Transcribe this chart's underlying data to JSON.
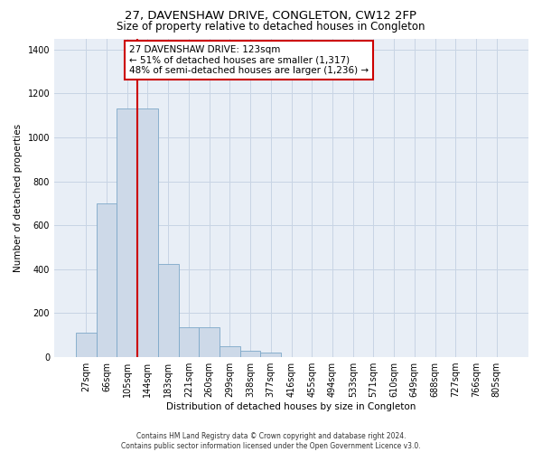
{
  "title": "27, DAVENSHAW DRIVE, CONGLETON, CW12 2FP",
  "subtitle": "Size of property relative to detached houses in Congleton",
  "xlabel": "Distribution of detached houses by size in Congleton",
  "ylabel": "Number of detached properties",
  "footer_line1": "Contains HM Land Registry data © Crown copyright and database right 2024.",
  "footer_line2": "Contains public sector information licensed under the Open Government Licence v3.0.",
  "categories": [
    "27sqm",
    "66sqm",
    "105sqm",
    "144sqm",
    "183sqm",
    "221sqm",
    "260sqm",
    "299sqm",
    "338sqm",
    "377sqm",
    "416sqm",
    "455sqm",
    "494sqm",
    "533sqm",
    "571sqm",
    "610sqm",
    "649sqm",
    "688sqm",
    "727sqm",
    "766sqm",
    "805sqm"
  ],
  "values": [
    110,
    700,
    1130,
    1130,
    425,
    135,
    135,
    50,
    30,
    20,
    0,
    0,
    0,
    0,
    0,
    0,
    0,
    0,
    0,
    0,
    0
  ],
  "bar_color": "#cdd9e8",
  "bar_edgecolor": "#7da8c8",
  "ref_line_color": "#cc0000",
  "ref_line_index": 2.5,
  "annotation_text_line1": "27 DAVENSHAW DRIVE: 123sqm",
  "annotation_text_line2": "← 51% of detached houses are smaller (1,317)",
  "annotation_text_line3": "48% of semi-detached houses are larger (1,236) →",
  "annotation_box_color": "#cc0000",
  "ylim": [
    0,
    1450
  ],
  "yticks": [
    0,
    200,
    400,
    600,
    800,
    1000,
    1200,
    1400
  ],
  "grid_color": "#c8d4e4",
  "bg_color": "#e8eef6",
  "title_fontsize": 9.5,
  "subtitle_fontsize": 8.5,
  "tick_fontsize": 7,
  "ylabel_fontsize": 7.5,
  "xlabel_fontsize": 7.5,
  "annotation_fontsize": 7.5,
  "footer_fontsize": 5.5
}
